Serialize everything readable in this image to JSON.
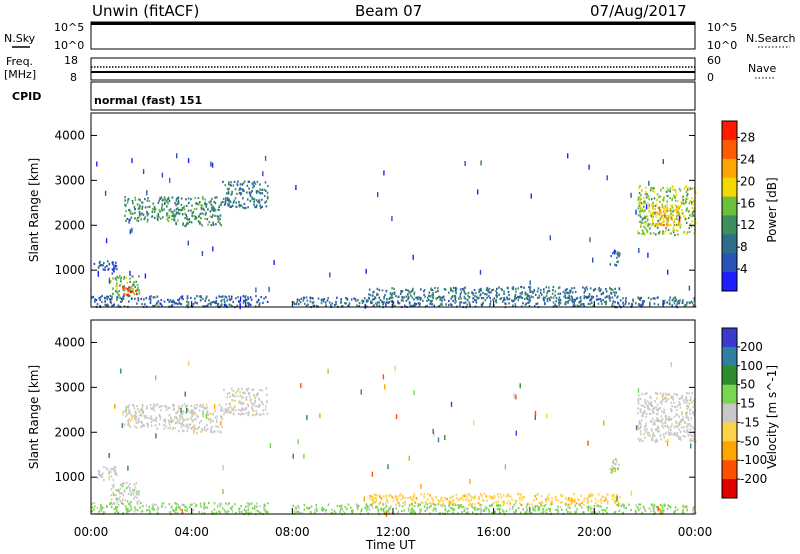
{
  "header": {
    "station": "Unwin (fitACF)",
    "beam": "Beam 07",
    "date": "07/Aug/2017"
  },
  "noise_panel": {
    "left_label": "N.Sky",
    "left_ticks": [
      "10^5",
      "10^0"
    ],
    "right_label": "N.Search",
    "right_ticks": [
      "10^5",
      "10^0"
    ]
  },
  "freq_panel": {
    "left_label_1": "Freq.",
    "left_label_2": "[MHz]",
    "left_ticks": [
      "18",
      "8"
    ],
    "right_label": "Nave",
    "right_ticks": [
      "60",
      "0"
    ]
  },
  "cpid_panel": {
    "label": "CPID",
    "value": "normal (fast) 151"
  },
  "x_axis": {
    "ticks": [
      "00:00",
      "04:00",
      "08:00",
      "12:00",
      "16:00",
      "20:00",
      "00:00"
    ],
    "label": "Time UT"
  },
  "colors": {
    "power_scale": [
      "#1e1eff",
      "#2a52b8",
      "#2e6e8a",
      "#3f8f5e",
      "#6cbf3c",
      "#f5d800",
      "#ffa500",
      "#ff5a00",
      "#ff1a00"
    ],
    "velocity_scale": [
      "#3a3acc",
      "#2f7fa0",
      "#2e8b2e",
      "#7ad650",
      "#c8c8c8",
      "#ffd24a",
      "#ffa500",
      "#ff5000",
      "#e00000"
    ]
  },
  "chart_data": [
    {
      "type": "heatmap",
      "title": "",
      "xlabel": "Time UT",
      "ylabel": "Slant Range [km]",
      "xlim": [
        "00:00",
        "24:00"
      ],
      "ylim": [
        180,
        4500
      ],
      "yticks": [
        "1000",
        "2000",
        "3000",
        "4000"
      ],
      "colorbar": {
        "label": "Power [dB]",
        "ticks": [
          "4",
          "8",
          "12",
          "16",
          "20",
          "24",
          "28"
        ],
        "range": [
          0,
          31
        ]
      },
      "regions": [
        {
          "t0": 0.1,
          "t1": 1.0,
          "r0": 950,
          "r1": 1250,
          "value": 6
        },
        {
          "t0": 0.7,
          "t1": 1.9,
          "r0": 400,
          "r1": 900,
          "value": 14
        },
        {
          "t0": 1.2,
          "t1": 1.8,
          "r0": 450,
          "r1": 650,
          "value": 28
        },
        {
          "t0": 1.3,
          "t1": 3.2,
          "r0": 2100,
          "r1": 2650,
          "value": 12
        },
        {
          "t0": 3.2,
          "t1": 5.2,
          "r0": 2000,
          "r1": 2650,
          "value": 11
        },
        {
          "t0": 5.2,
          "t1": 7.0,
          "r0": 2400,
          "r1": 3000,
          "value": 9
        },
        {
          "t0": 0.0,
          "t1": 7.0,
          "r0": 200,
          "r1": 450,
          "value": 7
        },
        {
          "t0": 11.0,
          "t1": 21.0,
          "r0": 400,
          "r1": 650,
          "value": 9
        },
        {
          "t0": 8.0,
          "t1": 24.0,
          "r0": 200,
          "r1": 420,
          "value": 8
        },
        {
          "t0": 20.6,
          "t1": 21.0,
          "r0": 1100,
          "r1": 1450,
          "value": 9
        },
        {
          "t0": 21.7,
          "t1": 24.0,
          "r0": 1800,
          "r1": 2900,
          "value": 16
        },
        {
          "t0": 22.2,
          "t1": 23.4,
          "r0": 2000,
          "r1": 2500,
          "value": 21
        }
      ]
    },
    {
      "type": "heatmap",
      "title": "",
      "xlabel": "Time UT",
      "ylabel": "Slant Range [km]",
      "xlim": [
        "00:00",
        "24:00"
      ],
      "ylim": [
        180,
        4500
      ],
      "yticks": [
        "1000",
        "2000",
        "3000",
        "4000"
      ],
      "colorbar": {
        "label": "Velocity [m s^-1]",
        "ticks": [
          "200",
          "100",
          "50",
          "15",
          "-15",
          "-50",
          "-100",
          "-200"
        ],
        "range": [
          -250,
          250
        ]
      },
      "regions": [
        {
          "t0": 0.1,
          "t1": 1.0,
          "r0": 950,
          "r1": 1250,
          "value": 0
        },
        {
          "t0": 0.7,
          "t1": 1.9,
          "r0": 400,
          "r1": 900,
          "value": 5
        },
        {
          "t0": 1.3,
          "t1": 3.2,
          "r0": 2100,
          "r1": 2650,
          "value": 0
        },
        {
          "t0": 3.2,
          "t1": 5.2,
          "r0": 2000,
          "r1": 2650,
          "value": -5
        },
        {
          "t0": 5.2,
          "t1": 7.0,
          "r0": 2400,
          "r1": 3000,
          "value": -10
        },
        {
          "t0": 0.0,
          "t1": 7.0,
          "r0": 200,
          "r1": 450,
          "value": 40
        },
        {
          "t0": 11.0,
          "t1": 21.0,
          "r0": 400,
          "r1": 650,
          "value": -60
        },
        {
          "t0": 8.0,
          "t1": 24.0,
          "r0": 200,
          "r1": 420,
          "value": 45
        },
        {
          "t0": 20.6,
          "t1": 21.0,
          "r0": 1100,
          "r1": 1450,
          "value": 40
        },
        {
          "t0": 21.7,
          "t1": 24.0,
          "r0": 1800,
          "r1": 2900,
          "value": 0
        }
      ]
    }
  ]
}
